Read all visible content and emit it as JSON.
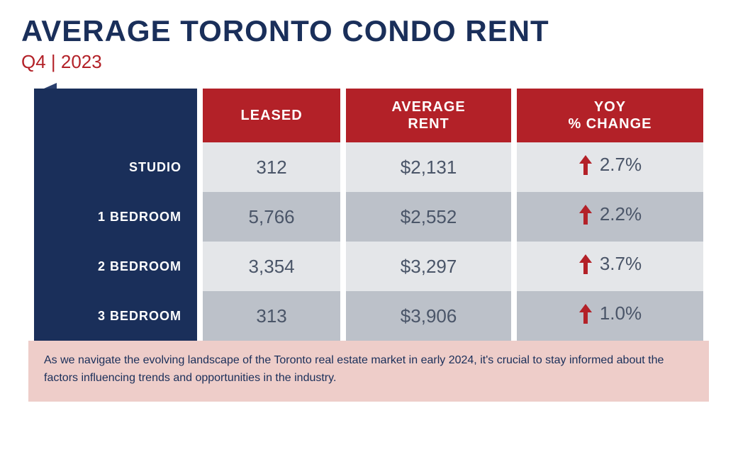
{
  "title": "AVERAGE TORONTO CONDO RENT",
  "subtitle": "Q4 | 2023",
  "colors": {
    "title": "#1a2f5a",
    "accent_red": "#b32128",
    "navy": "#1a2f5a",
    "row_odd": "#e4e6e9",
    "row_even": "#bcc1c9",
    "cell_text": "#4a5568",
    "footer_bg": "#eecdc9",
    "white": "#ffffff"
  },
  "typography": {
    "title_fontsize": 42,
    "subtitle_fontsize": 26,
    "header_fontsize": 20,
    "rowlabel_fontsize": 18,
    "cell_fontsize": 26,
    "footer_fontsize": 16
  },
  "table": {
    "type": "table",
    "columns": [
      "LEASED",
      "AVERAGE\nRENT",
      "YOY\n% CHANGE"
    ],
    "rows": [
      {
        "label": "STUDIO",
        "leased": "312",
        "rent": "$2,131",
        "change": "2.7%",
        "direction": "up"
      },
      {
        "label": "1 BEDROOM",
        "leased": "5,766",
        "rent": "$2,552",
        "change": "2.2%",
        "direction": "up"
      },
      {
        "label": "2 BEDROOM",
        "leased": "3,354",
        "rent": "$3,297",
        "change": "3.7%",
        "direction": "up"
      },
      {
        "label": "3 BEDROOM",
        "leased": "313",
        "rent": "$3,906",
        "change": "1.0%",
        "direction": "up"
      }
    ]
  },
  "footer": "As we navigate the evolving landscape of the Toronto real estate market in early 2024, it's crucial to stay informed about the factors influencing trends and opportunities in the industry."
}
